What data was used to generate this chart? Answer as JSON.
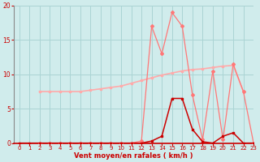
{
  "bg_color": "#d0ecec",
  "grid_color": "#aad4d4",
  "line1_color": "#ffaaaa",
  "line2_color": "#ff7777",
  "line3_color": "#cc0000",
  "xlabel": "Vent moyen/en rafales ( km/h )",
  "xlabel_color": "#cc0000",
  "tick_color": "#cc0000",
  "xlim": [
    -0.5,
    23
  ],
  "ylim": [
    0,
    20
  ],
  "yticks": [
    0,
    5,
    10,
    15,
    20
  ],
  "xticks": [
    0,
    1,
    2,
    3,
    4,
    5,
    6,
    7,
    8,
    9,
    10,
    11,
    12,
    13,
    14,
    15,
    16,
    17,
    18,
    19,
    20,
    21,
    22,
    23
  ],
  "line1_x": [
    2,
    3,
    4,
    5,
    6,
    7,
    8,
    9,
    10,
    11,
    12,
    13,
    14,
    15,
    16,
    17,
    18,
    19,
    20,
    21,
    22
  ],
  "line1_y": [
    7.5,
    7.5,
    7.5,
    7.5,
    7.5,
    7.7,
    7.9,
    8.1,
    8.3,
    8.7,
    9.1,
    9.5,
    9.9,
    10.2,
    10.5,
    10.7,
    10.8,
    11.0,
    11.2,
    11.3,
    7.5
  ],
  "line2_x": [
    2,
    3,
    4,
    5,
    6,
    7,
    8,
    9,
    10,
    11,
    12,
    13,
    14,
    15,
    16,
    17,
    18,
    19,
    20,
    21,
    22,
    23
  ],
  "line2_y": [
    0,
    0,
    0,
    0,
    0,
    0,
    0,
    0,
    0,
    0,
    0.3,
    17,
    13,
    19,
    17,
    7,
    0.5,
    10.5,
    0.5,
    11.5,
    7.5,
    0
  ],
  "line3_x": [
    0,
    1,
    2,
    3,
    4,
    5,
    6,
    7,
    8,
    9,
    10,
    11,
    12,
    13,
    14,
    15,
    16,
    17,
    18,
    19,
    20,
    21,
    22,
    23
  ],
  "line3_y": [
    0,
    0,
    0,
    0,
    0,
    0,
    0,
    0,
    0,
    0,
    0,
    0,
    0,
    0.3,
    1.0,
    6.5,
    6.5,
    2.0,
    0.2,
    0,
    1.0,
    1.5,
    0,
    0
  ],
  "marker_size": 2.0
}
